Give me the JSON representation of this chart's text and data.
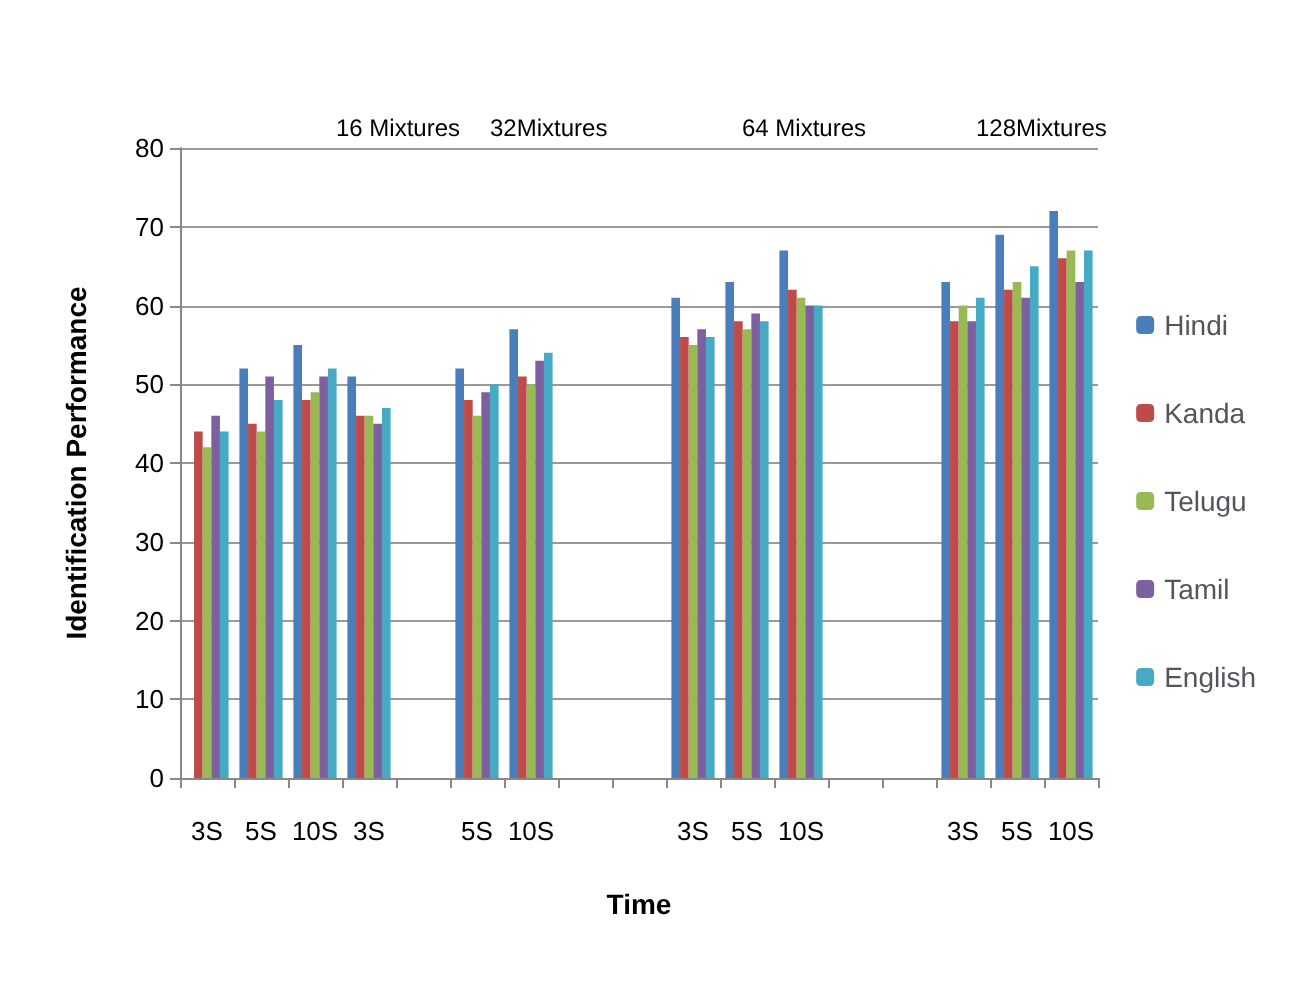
{
  "chart_data": {
    "type": "bar",
    "xlabel": "Time",
    "ylabel": "Identification Performance",
    "categories": [
      "3S",
      "5S",
      "10S",
      "3S",
      null,
      "5S",
      "10S",
      null,
      null,
      "3S",
      "5S",
      "10S",
      null,
      null,
      "3S",
      "5S",
      "10S"
    ],
    "series": [
      {
        "name": "Hindi",
        "color": "#4a7ebb",
        "values": [
          null,
          52,
          55,
          51,
          null,
          52,
          57,
          null,
          null,
          61,
          63,
          67,
          null,
          null,
          63,
          69,
          72
        ]
      },
      {
        "name": "Kanda",
        "color": "#be4b48",
        "values": [
          44,
          45,
          48,
          46,
          null,
          48,
          51,
          null,
          null,
          56,
          58,
          62,
          null,
          null,
          58,
          62,
          66
        ]
      },
      {
        "name": "Telugu",
        "color": "#98b954",
        "values": [
          42,
          44,
          49,
          46,
          null,
          46,
          50,
          null,
          null,
          55,
          57,
          61,
          null,
          null,
          60,
          63,
          67
        ]
      },
      {
        "name": "Tamil",
        "color": "#7d60a0",
        "values": [
          46,
          51,
          51,
          45,
          null,
          49,
          53,
          null,
          null,
          57,
          59,
          60,
          null,
          null,
          58,
          61,
          63
        ]
      },
      {
        "name": "English",
        "color": "#46aac5",
        "values": [
          44,
          48,
          52,
          47,
          null,
          50,
          54,
          null,
          null,
          56,
          58,
          60,
          null,
          null,
          61,
          65,
          67
        ]
      }
    ],
    "annotations": [
      "16 Mixtures",
      "32Mixtures",
      "64 Mixtures",
      "128Mixtures"
    ],
    "ylim": [
      0,
      80
    ],
    "yticks": [
      0,
      10,
      20,
      30,
      40,
      50,
      60,
      70,
      80
    ],
    "grid": "y",
    "legend": "right"
  }
}
